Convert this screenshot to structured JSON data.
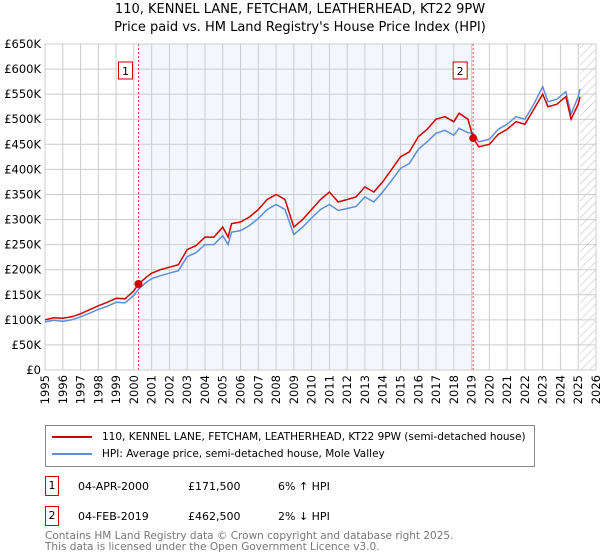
{
  "title": "110, KENNEL LANE, FETCHAM, LEATHERHEAD, KT22 9PW",
  "subtitle": "Price paid vs. HM Land Registry's House Price Index (HPI)",
  "chart_data": {
    "type": "line",
    "xlim": [
      1995,
      2026
    ],
    "ylim": [
      0,
      650000
    ],
    "yticks": [
      "£0",
      "£50K",
      "£100K",
      "£150K",
      "£200K",
      "£250K",
      "£300K",
      "£350K",
      "£400K",
      "£450K",
      "£500K",
      "£550K",
      "£600K",
      "£650K"
    ],
    "xticks": [
      "1995",
      "1996",
      "1997",
      "1998",
      "1999",
      "2000",
      "2001",
      "2002",
      "2003",
      "2004",
      "2005",
      "2006",
      "2007",
      "2008",
      "2009",
      "2010",
      "2011",
      "2012",
      "2013",
      "2014",
      "2015",
      "2016",
      "2017",
      "2018",
      "2019",
      "2020",
      "2021",
      "2022",
      "2023",
      "2024",
      "2025",
      "2026"
    ],
    "grid": true,
    "shaded_range": [
      2000.26,
      2019.09
    ],
    "forecast_hatch_from": 2025.1,
    "series": [
      {
        "name": "110, KENNEL LANE, FETCHAM, LEATHERHEAD, KT22 9PW (semi-detached house)",
        "color": "#cc0000",
        "x": [
          1995,
          1995.5,
          1996,
          1996.5,
          1997,
          1997.5,
          1998,
          1998.5,
          1999,
          1999.5,
          2000,
          2000.26,
          2000.7,
          2001,
          2001.5,
          2002,
          2002.5,
          2003,
          2003.5,
          2004,
          2004.5,
          2005,
          2005.3,
          2005.5,
          2006,
          2006.5,
          2007,
          2007.5,
          2008,
          2008.5,
          2009,
          2009.5,
          2010,
          2010.5,
          2011,
          2011.5,
          2012,
          2012.5,
          2013,
          2013.5,
          2014,
          2014.5,
          2015,
          2015.5,
          2016,
          2016.5,
          2017,
          2017.5,
          2018,
          2018.3,
          2018.8,
          2019.09,
          2019.4,
          2020,
          2020.5,
          2021,
          2021.5,
          2022,
          2022.5,
          2023,
          2023.3,
          2023.8,
          2024.3,
          2024.6,
          2025,
          2025.1
        ],
        "y": [
          100000,
          104000,
          103000,
          106000,
          112000,
          120000,
          128000,
          135000,
          143000,
          142000,
          158000,
          171500,
          185000,
          193000,
          200000,
          205000,
          210000,
          240000,
          248000,
          265000,
          265000,
          285000,
          265000,
          292000,
          295000,
          305000,
          320000,
          340000,
          350000,
          340000,
          285000,
          300000,
          320000,
          340000,
          355000,
          335000,
          340000,
          345000,
          365000,
          355000,
          375000,
          400000,
          425000,
          435000,
          465000,
          480000,
          500000,
          505000,
          495000,
          512000,
          500000,
          462500,
          445000,
          450000,
          470000,
          480000,
          495000,
          490000,
          520000,
          550000,
          525000,
          530000,
          545000,
          500000,
          530000,
          545000
        ]
      },
      {
        "name": "HPI: Average price, semi-detached house, Mole Valley",
        "color": "#5b8fd6",
        "x": [
          1995,
          1995.5,
          1996,
          1996.5,
          1997,
          1997.5,
          1998,
          1998.5,
          1999,
          1999.5,
          2000,
          2000.26,
          2000.7,
          2001,
          2001.5,
          2002,
          2002.5,
          2003,
          2003.5,
          2004,
          2004.5,
          2005,
          2005.3,
          2005.5,
          2006,
          2006.5,
          2007,
          2007.5,
          2008,
          2008.5,
          2009,
          2009.5,
          2010,
          2010.5,
          2011,
          2011.5,
          2012,
          2012.5,
          2013,
          2013.5,
          2014,
          2014.5,
          2015,
          2015.5,
          2016,
          2016.5,
          2017,
          2017.5,
          2018,
          2018.3,
          2018.8,
          2019.09,
          2019.4,
          2020,
          2020.5,
          2021,
          2021.5,
          2022,
          2022.5,
          2023,
          2023.3,
          2023.8,
          2024.3,
          2024.6,
          2025,
          2025.1
        ],
        "y": [
          96000,
          99000,
          97000,
          100000,
          106000,
          113000,
          121000,
          127000,
          135000,
          134000,
          149000,
          161000,
          175000,
          182000,
          188000,
          193000,
          198000,
          226000,
          234000,
          250000,
          250000,
          268000,
          250000,
          275000,
          278000,
          288000,
          302000,
          320000,
          330000,
          320000,
          270000,
          285000,
          303000,
          320000,
          330000,
          318000,
          322000,
          326000,
          345000,
          335000,
          355000,
          378000,
          402000,
          412000,
          440000,
          455000,
          472000,
          478000,
          468000,
          482000,
          473000,
          472000,
          455000,
          460000,
          480000,
          490000,
          505000,
          500000,
          530000,
          565000,
          535000,
          540000,
          555000,
          510000,
          545000,
          560000
        ]
      }
    ],
    "annotations": [
      {
        "label": "1",
        "x": 2000.26,
        "y": 171500
      },
      {
        "label": "2",
        "x": 2019.09,
        "y": 462500
      }
    ]
  },
  "legend": {
    "red": "110, KENNEL LANE, FETCHAM, LEATHERHEAD, KT22 9PW (semi-detached house)",
    "blue": "HPI: Average price, semi-detached house, Mole Valley"
  },
  "sales": [
    {
      "num": "1",
      "date": "04-APR-2000",
      "price": "£171,500",
      "hpi": "6% ↑ HPI"
    },
    {
      "num": "2",
      "date": "04-FEB-2019",
      "price": "£462,500",
      "hpi": "2% ↓ HPI"
    }
  ],
  "footer": {
    "line1": "Contains HM Land Registry data © Crown copyright and database right 2025.",
    "line2": "This data is licensed under the Open Government Licence v3.0."
  }
}
